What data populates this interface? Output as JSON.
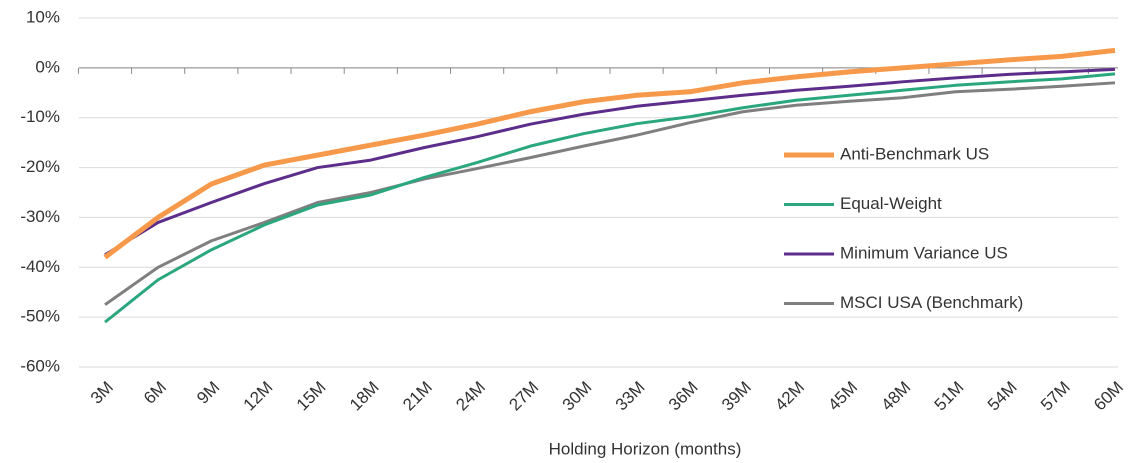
{
  "chart_data": {
    "type": "line",
    "xlabel": "Holding Horizon (months)",
    "categories": [
      "3M",
      "6M",
      "9M",
      "12M",
      "15M",
      "18M",
      "21M",
      "24M",
      "27M",
      "30M",
      "33M",
      "36M",
      "39M",
      "42M",
      "45M",
      "48M",
      "51M",
      "54M",
      "57M",
      "60M"
    ],
    "series": [
      {
        "name": "Anti-Benchmark US",
        "color": "#f7994a",
        "values": [
          -38,
          -30,
          -23.3,
          -19.5,
          -17.5,
          -15.5,
          -13.5,
          -11.3,
          -8.8,
          -6.8,
          -5.5,
          -4.8,
          -3,
          -1.8,
          -0.8,
          0,
          0.8,
          1.6,
          2.3,
          3.5
        ]
      },
      {
        "name": "Equal-Weight",
        "color": "#2aa77f",
        "values": [
          -51,
          -42.5,
          -36.5,
          -31.5,
          -27.5,
          -25.5,
          -22,
          -19,
          -15.7,
          -13.2,
          -11.2,
          -9.8,
          -8,
          -6.5,
          -5.5,
          -4.5,
          -3.5,
          -2.8,
          -2.2,
          -1.2
        ]
      },
      {
        "name": "Minimum Variance US",
        "color": "#5c2d8a",
        "values": [
          -37.5,
          -31,
          -27,
          -23.2,
          -20,
          -18.5,
          -16,
          -13.8,
          -11.3,
          -9.3,
          -7.7,
          -6.6,
          -5.5,
          -4.5,
          -3.7,
          -2.8,
          -2,
          -1.3,
          -0.8,
          -0.3
        ]
      },
      {
        "name": "MSCI USA (Benchmark)",
        "color": "#7f7f7f",
        "values": [
          -47.5,
          -40,
          -34.7,
          -31,
          -27,
          -25,
          -22.3,
          -20.2,
          -18,
          -15.7,
          -13.5,
          -11,
          -8.8,
          -7.5,
          -6.7,
          -6,
          -4.8,
          -4.3,
          -3.7,
          -3
        ]
      }
    ],
    "ylim": [
      -60,
      10
    ],
    "yticks": [
      {
        "value": -60,
        "label": "-60%"
      },
      {
        "value": -50,
        "label": "-50%"
      },
      {
        "value": -40,
        "label": "-40%"
      },
      {
        "value": -30,
        "label": "-30%"
      },
      {
        "value": -20,
        "label": "-20%"
      },
      {
        "value": -10,
        "label": "-10%"
      },
      {
        "value": 0,
        "label": "0%"
      },
      {
        "value": 10,
        "label": "10%"
      }
    ],
    "grid": true
  }
}
